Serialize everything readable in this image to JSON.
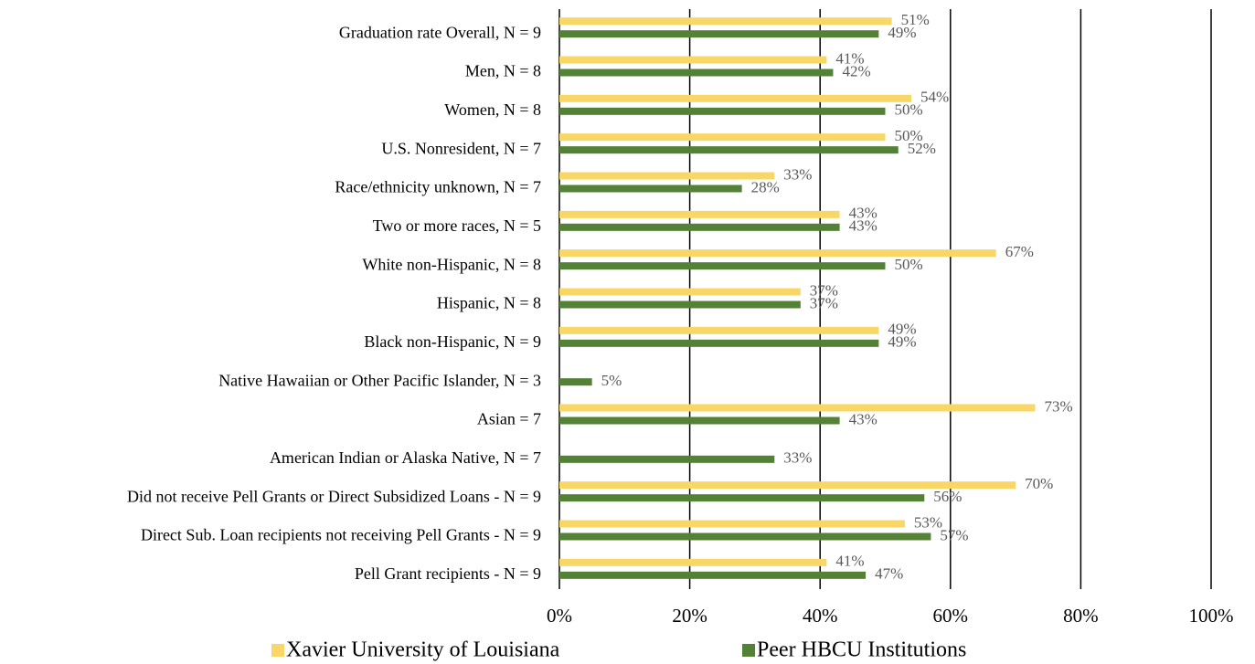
{
  "chart_data": {
    "type": "barh",
    "categories": [
      "Graduation rate Overall,  N = 9",
      "Men, N = 8",
      "Women, N = 8",
      "U.S. Nonresident, N = 7",
      "Race/ethnicity unknown, N = 7",
      "Two or more races, N = 5",
      "White  non-Hispanic, N = 8",
      "Hispanic, N = 8",
      "Black  non-Hispanic, N = 9",
      "Native Hawaiian or Other Pacific Islander, N = 3",
      "Asian = 7",
      "American Indian or Alaska Native,  N = 7",
      "Did not receive Pell Grants or Direct Subsidized  Loans -  N = 9",
      "Direct Sub. Loan recipients not receiving Pell Grants - N = 9",
      "Pell Grant recipients - N = 9"
    ],
    "series": [
      {
        "name": "Xavier University of Louisiana",
        "color": "#f8d766",
        "values": [
          51,
          41,
          54,
          50,
          33,
          43,
          67,
          37,
          49,
          null,
          73,
          null,
          70,
          53,
          41
        ],
        "value_labels": [
          "51%",
          "41%",
          "54%",
          "50%",
          "33%",
          "43%",
          "67%",
          "37%",
          "49%",
          null,
          "73%",
          null,
          "70%",
          "53%",
          "41%"
        ]
      },
      {
        "name": "Peer HBCU Institutions",
        "color": "#538135",
        "values": [
          49,
          42,
          50,
          52,
          28,
          43,
          50,
          37,
          49,
          5,
          43,
          33,
          56,
          57,
          47
        ],
        "value_labels": [
          "49%",
          "42%",
          "50%",
          "52%",
          "28%",
          "43%",
          "50%",
          "37%",
          "49%",
          "5%",
          "43%",
          "33%",
          "56%",
          "57%",
          "47%"
        ]
      }
    ],
    "xlim": [
      0,
      100
    ],
    "xticks": [
      {
        "value": 0,
        "label": "0%"
      },
      {
        "value": 20,
        "label": "20%"
      },
      {
        "value": 40,
        "label": "40%"
      },
      {
        "value": 60,
        "label": "60%"
      },
      {
        "value": 80,
        "label": "80%"
      },
      {
        "value": 100,
        "label": "100%"
      }
    ],
    "grid": true,
    "legend": "bottom"
  }
}
